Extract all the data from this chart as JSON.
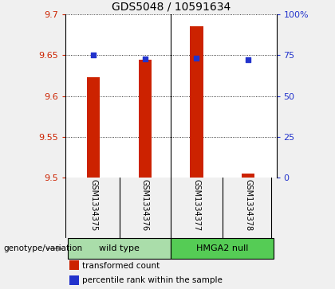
{
  "title": "GDS5048 / 10591634",
  "samples": [
    "GSM1334375",
    "GSM1334376",
    "GSM1334377",
    "GSM1334378"
  ],
  "red_values": [
    9.623,
    9.645,
    9.686,
    9.505
  ],
  "blue_values": [
    75.0,
    73.0,
    73.5,
    72.5
  ],
  "ylim_left": [
    9.5,
    9.7
  ],
  "ylim_right": [
    0,
    100
  ],
  "yticks_left": [
    9.5,
    9.55,
    9.6,
    9.65,
    9.7
  ],
  "yticks_right": [
    0,
    25,
    50,
    75,
    100
  ],
  "ytick_labels_right": [
    "0",
    "25",
    "50",
    "75",
    "100%"
  ],
  "bar_baseline": 9.5,
  "bar_color": "#cc2200",
  "blue_color": "#2233cc",
  "groups": [
    {
      "label": "wild type",
      "samples": [
        0,
        1
      ],
      "color": "#aaddaa"
    },
    {
      "label": "HMGA2 null",
      "samples": [
        2,
        3
      ],
      "color": "#55cc55"
    }
  ],
  "genotype_label": "genotype/variation",
  "legend_red": "transformed count",
  "legend_blue": "percentile rank within the sample",
  "title_fontsize": 10,
  "tick_fontsize": 8,
  "bar_width": 0.25,
  "background_plot": "#ffffff",
  "background_label": "#c8c8c8",
  "fig_bg": "#f0f0f0"
}
